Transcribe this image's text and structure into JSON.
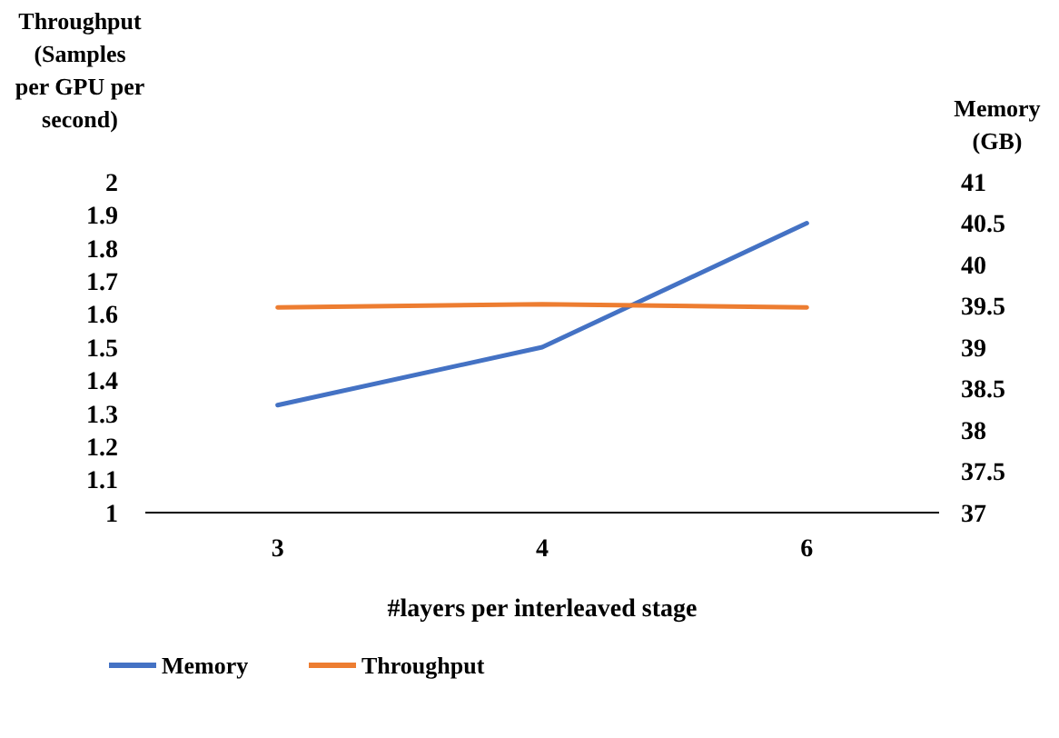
{
  "chart_data": {
    "type": "line",
    "categories": [
      "3",
      "4",
      "6"
    ],
    "series": [
      {
        "name": "Memory",
        "color": "#4472c4",
        "values": [
          38.3,
          39.0,
          40.5
        ],
        "axis": "y2"
      },
      {
        "name": "Throughput",
        "color": "#ed7d31",
        "values": [
          1.62,
          1.63,
          1.62
        ]
      }
    ],
    "ylabel": "Throughput (Samples per GPU per second)",
    "y2label": "Memory (GB)",
    "xlabel": "#layers per interleaved stage",
    "ylim": [
      1,
      2
    ],
    "yticks": [
      1,
      1.1,
      1.2,
      1.3,
      1.4,
      1.5,
      1.6,
      1.7,
      1.8,
      1.9,
      2
    ],
    "y2lim": [
      37,
      41
    ],
    "y2ticks": [
      37,
      37.5,
      38,
      38.5,
      39,
      39.5,
      40,
      40.5,
      41
    ],
    "legend": "bottom",
    "grid": false,
    "marker": "none",
    "line_style": "solid"
  }
}
